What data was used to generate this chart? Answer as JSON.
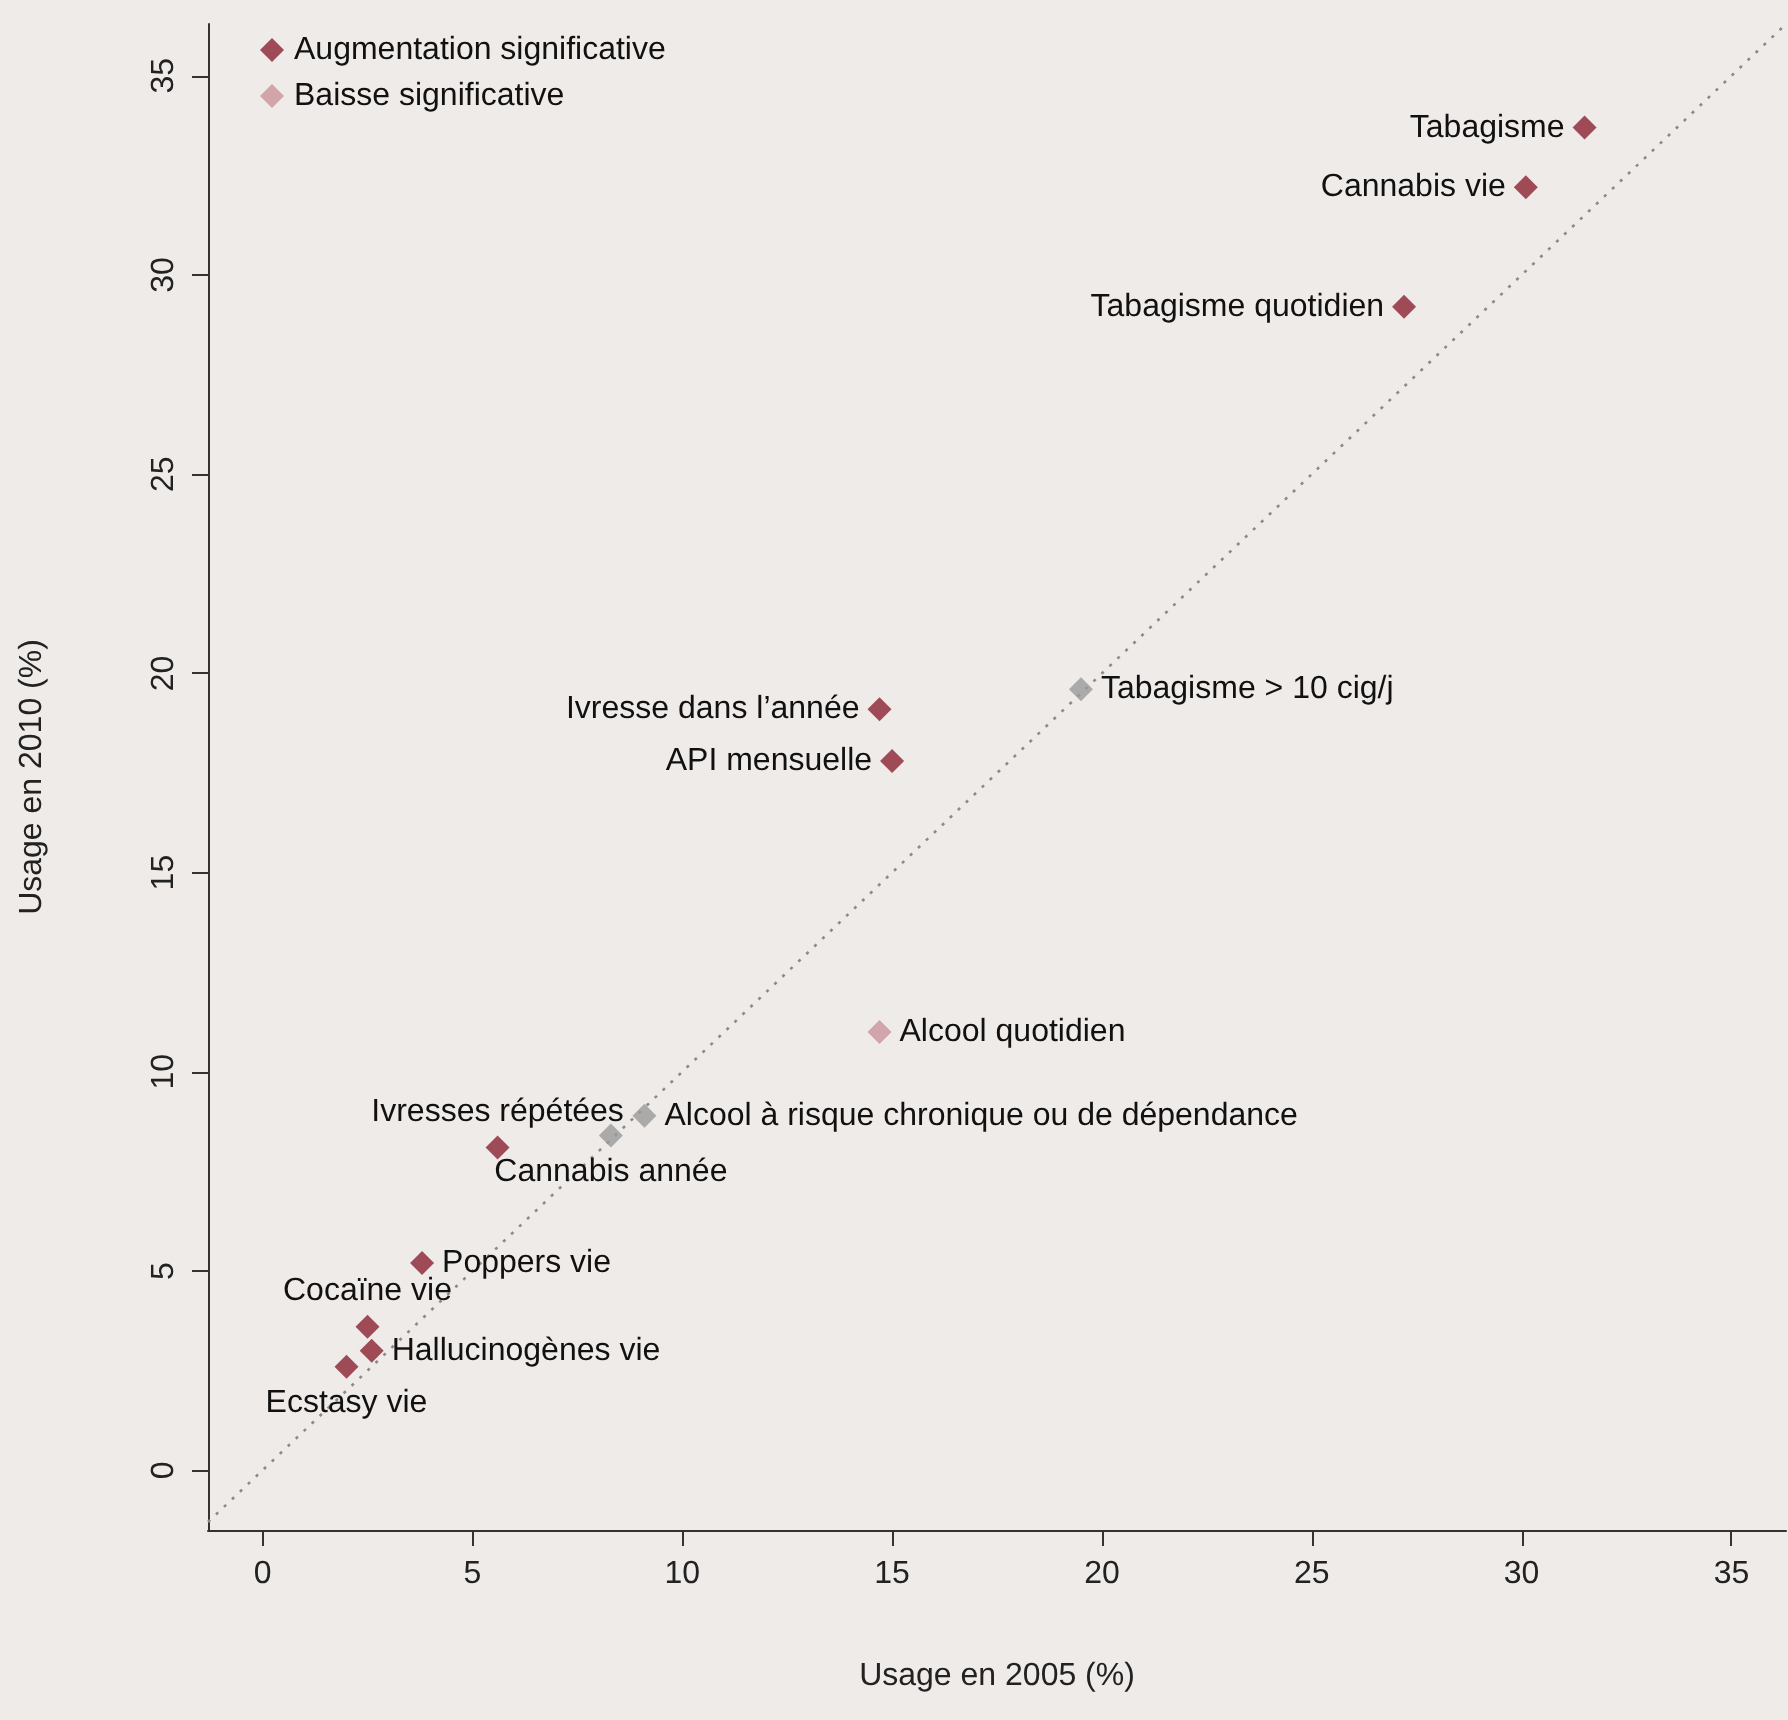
{
  "chart_data": {
    "type": "scatter",
    "xlabel": "Usage en 2005 (%)",
    "ylabel": "Usage en 2010 (%)",
    "xlim": [
      -1.3,
      36.3
    ],
    "ylim": [
      -1.5,
      36.3
    ],
    "xticks": [
      0,
      5,
      10,
      15,
      20,
      25,
      30,
      35
    ],
    "yticks": [
      0,
      5,
      10,
      15,
      20,
      25,
      30,
      35
    ],
    "grid": false,
    "legend": "top left",
    "marker": "diamond",
    "series": [
      {
        "name": "Augmentation significative",
        "color": "#8b2332",
        "x": [
          31.5,
          30.1,
          27.2,
          14.7,
          15.0,
          5.6,
          3.8,
          2.5,
          2.6,
          2.0
        ],
        "values": [
          33.7,
          32.2,
          29.2,
          19.1,
          17.8,
          8.1,
          5.2,
          3.6,
          3.0,
          2.6
        ]
      },
      {
        "name": "Baisse significative",
        "color": "#c9949a",
        "x": [
          14.7
        ],
        "values": [
          11.0
        ]
      },
      {
        "color": "#9a9a9a",
        "x": [
          19.5,
          9.1,
          8.3
        ],
        "values": [
          19.6,
          8.9,
          8.4
        ]
      },
      {
        "type": "line",
        "color": "#8a8a8a",
        "line_style": "dotted",
        "marker": "none",
        "x": [
          -1.3,
          36.3
        ],
        "values": [
          -1.3,
          36.3
        ]
      }
    ],
    "annotations": [
      {
        "text": "Tabagisme",
        "x": 31.5,
        "y": 33.7
      },
      {
        "text": "Cannabis vie",
        "x": 30.1,
        "y": 32.2
      },
      {
        "text": "Tabagisme quotidien",
        "x": 27.2,
        "y": 29.2
      },
      {
        "text": "Tabagisme > 10 cig/j",
        "x": 19.5,
        "y": 19.6
      },
      {
        "text": "Ivresse dans l’année",
        "x": 14.7,
        "y": 19.1
      },
      {
        "text": "API mensuelle",
        "x": 15.0,
        "y": 17.8
      },
      {
        "text": "Alcool quotidien",
        "x": 14.7,
        "y": 11.0
      },
      {
        "text": "Alcool à risque chronique ou de dépendance",
        "x": 9.1,
        "y": 8.9
      },
      {
        "text": "Cannabis année",
        "x": 8.3,
        "y": 8.4
      },
      {
        "text": "Ivresses répétées",
        "x": 5.6,
        "y": 8.1
      },
      {
        "text": "Poppers vie",
        "x": 3.8,
        "y": 5.2
      },
      {
        "text": "Cocaïne vie",
        "x": 2.5,
        "y": 3.6
      },
      {
        "text": "Hallucinogènes vie",
        "x": 2.6,
        "y": 3.0
      },
      {
        "text": "Ecstasy vie",
        "x": 2.0,
        "y": 2.6
      }
    ]
  }
}
